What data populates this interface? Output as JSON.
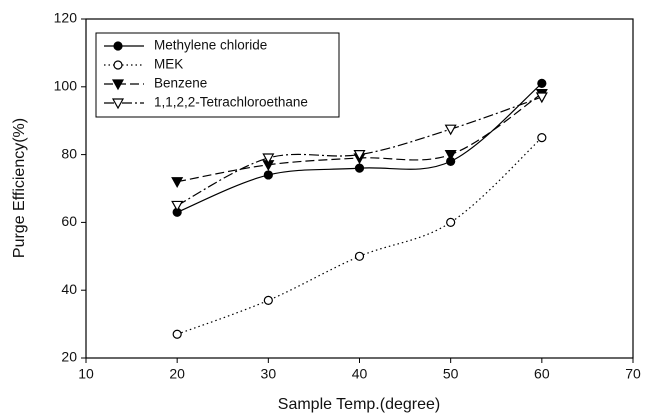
{
  "chart_data": {
    "type": "line",
    "x_label": "Sample Temp.(degree)",
    "y_label": "Purge Efficiency(%)",
    "x": [
      20,
      30,
      40,
      50,
      60
    ],
    "series": [
      {
        "name": "Methylene chloride",
        "color": "#000000",
        "marker": "filled-circle",
        "dash": "solid",
        "values": [
          63,
          74,
          76,
          78,
          101
        ]
      },
      {
        "name": "MEK",
        "color": "#000000",
        "marker": "open-circle",
        "dash": "dotted",
        "values": [
          27,
          37,
          50,
          60,
          85
        ]
      },
      {
        "name": "Benzene",
        "color": "#000000",
        "marker": "filled-triangle-down",
        "dash": "dashed",
        "values": [
          72,
          77,
          79,
          80,
          98
        ]
      },
      {
        "name": "1,1,2,2-Tetrachloroethane",
        "color": "#000000",
        "marker": "open-triangle-down",
        "dash": "dashdot",
        "values": [
          65,
          79,
          80,
          87.5,
          97
        ]
      }
    ],
    "xlim": [
      10,
      70
    ],
    "xticks": [
      10,
      20,
      30,
      40,
      50,
      60,
      70
    ],
    "ylim": [
      20,
      120
    ],
    "yticks": [
      20,
      40,
      60,
      80,
      100,
      120
    ],
    "legend": "upper left",
    "grid": false
  }
}
